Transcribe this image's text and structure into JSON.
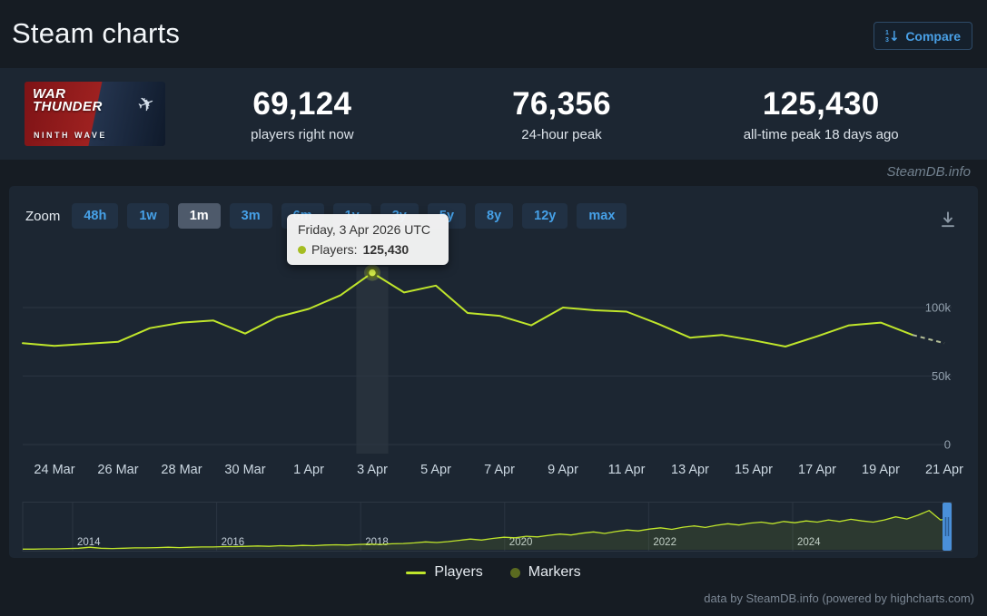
{
  "page": {
    "title": "Steam charts",
    "watermark": "SteamDB.info",
    "credits": "data by SteamDB.info (powered by highcharts.com)"
  },
  "header": {
    "compare_label": "Compare"
  },
  "game": {
    "capsule_title_line1": "WAR",
    "capsule_title_line2": "THUNDER",
    "capsule_subtitle": "NINTH WAVE",
    "plane_icon": "✈"
  },
  "stats": {
    "now": {
      "value": "69,124",
      "label": "players right now"
    },
    "peak24": {
      "value": "76,356",
      "label": "24-hour peak"
    },
    "alltime": {
      "value": "125,430",
      "label": "all-time peak 18 days ago"
    }
  },
  "zoom": {
    "label": "Zoom",
    "buttons": [
      "48h",
      "1w",
      "1m",
      "3m",
      "6m",
      "1y",
      "3y",
      "5y",
      "8y",
      "12y",
      "max"
    ],
    "selected": "1m"
  },
  "tooltip": {
    "date": "Friday, 3 Apr 2026 UTC",
    "series_label": "Players:",
    "value": "125,430",
    "dot_color": "#a5bd22"
  },
  "legend": [
    {
      "label": "Players",
      "type": "line",
      "color": "#bfe52b"
    },
    {
      "label": "Markers",
      "type": "dot",
      "color": "#5a6a20"
    }
  ],
  "colors": {
    "accent_blue": "#46a1e8",
    "line": "#bfe52b",
    "panel": "#1c2632",
    "background": "#161c23"
  },
  "chart_data": [
    {
      "type": "line",
      "title": "",
      "xlabel": "",
      "ylabel": "",
      "x": [
        "23 Mar",
        "24 Mar",
        "25 Mar",
        "26 Mar",
        "27 Mar",
        "28 Mar",
        "29 Mar",
        "30 Mar",
        "31 Mar",
        "1 Apr",
        "2 Apr",
        "3 Apr",
        "4 Apr",
        "5 Apr",
        "6 Apr",
        "7 Apr",
        "8 Apr",
        "9 Apr",
        "10 Apr",
        "11 Apr",
        "12 Apr",
        "13 Apr",
        "14 Apr",
        "15 Apr",
        "16 Apr",
        "17 Apr",
        "18 Apr",
        "19 Apr",
        "20 Apr",
        "21 Apr"
      ],
      "x_tick_labels": [
        "24 Mar",
        "26 Mar",
        "28 Mar",
        "30 Mar",
        "1 Apr",
        "3 Apr",
        "5 Apr",
        "7 Apr",
        "9 Apr",
        "11 Apr",
        "13 Apr",
        "15 Apr",
        "17 Apr",
        "19 Apr",
        "21 Apr"
      ],
      "series": [
        {
          "name": "Players",
          "color": "#bfe52b",
          "values": [
            74000,
            72000,
            73500,
            75000,
            85000,
            89000,
            90500,
            81000,
            93000,
            99000,
            109000,
            125430,
            111000,
            116000,
            96000,
            94000,
            87000,
            100000,
            98000,
            97000,
            88000,
            78000,
            80000,
            76000,
            71500,
            79000,
            87000,
            89000,
            80000,
            74000
          ]
        }
      ],
      "yticks": [
        {
          "v": 0,
          "label": "0"
        },
        {
          "v": 50000,
          "label": "50k"
        },
        {
          "v": 100000,
          "label": "100k"
        }
      ],
      "ylim": [
        0,
        130000
      ],
      "grid": true,
      "legend_position": "bottom",
      "highlight_index": 11,
      "dashed_from_index": 28,
      "dashed_color": "#b3bd96",
      "marker": {
        "x": "3 Apr",
        "value": 125430,
        "color": "#d7ef4a",
        "ring": "#5a6a20"
      }
    },
    {
      "type": "area",
      "name": "navigator",
      "color": "#bfe52b",
      "fill": "rgba(191,229,43,0.10)",
      "x_tick_labels": [
        "2014",
        "2016",
        "2018",
        "2020",
        "2022",
        "2024"
      ],
      "ylim": [
        0,
        130
      ],
      "values": [
        2,
        2,
        3,
        3,
        4,
        5,
        8,
        5,
        4,
        5,
        6,
        6,
        7,
        8,
        7,
        8,
        9,
        9,
        10,
        10,
        11,
        12,
        11,
        13,
        12,
        14,
        13,
        15,
        16,
        15,
        17,
        18,
        17,
        19,
        20,
        22,
        25,
        23,
        26,
        30,
        34,
        31,
        36,
        40,
        38,
        43,
        41,
        46,
        50,
        47,
        53,
        57,
        52,
        58,
        63,
        60,
        66,
        70,
        65,
        72,
        76,
        71,
        78,
        83,
        79,
        85,
        88,
        83,
        90,
        86,
        92,
        88,
        95,
        90,
        97,
        92,
        88,
        95,
        105,
        98,
        110,
        125,
        95,
        100
      ]
    }
  ]
}
